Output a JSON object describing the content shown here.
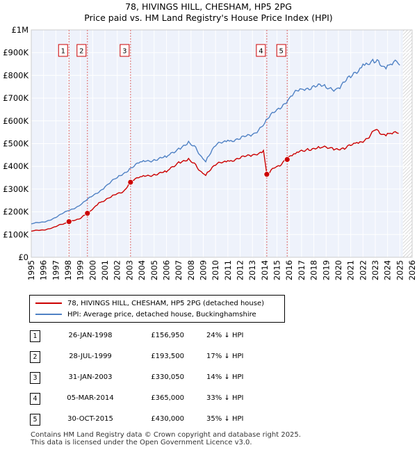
{
  "chart_data": {
    "type": "line",
    "title": "78, HIVINGS HILL, CHESHAM, HP5 2PG",
    "subtitle": "Price paid vs. HM Land Registry's House Price Index (HPI)",
    "xlim": [
      1995,
      2026
    ],
    "ylim": [
      0,
      1000000
    ],
    "x_ticks": [
      "1995",
      "1996",
      "1997",
      "1998",
      "1999",
      "2000",
      "2001",
      "2002",
      "2003",
      "2004",
      "2005",
      "2006",
      "2007",
      "2008",
      "2009",
      "2010",
      "2011",
      "2012",
      "2013",
      "2014",
      "2015",
      "2016",
      "2017",
      "2018",
      "2019",
      "2020",
      "2021",
      "2022",
      "2023",
      "2024",
      "2025",
      "2026"
    ],
    "y_ticks": [
      {
        "value": 0,
        "label": "£0"
      },
      {
        "value": 100000,
        "label": "£100K"
      },
      {
        "value": 200000,
        "label": "£200K"
      },
      {
        "value": 300000,
        "label": "£300K"
      },
      {
        "value": 400000,
        "label": "£400K"
      },
      {
        "value": 500000,
        "label": "£500K"
      },
      {
        "value": 600000,
        "label": "£600K"
      },
      {
        "value": 700000,
        "label": "£700K"
      },
      {
        "value": 800000,
        "label": "£800K"
      },
      {
        "value": 900000,
        "label": "£900K"
      },
      {
        "value": 1000000,
        "label": "£1M"
      }
    ],
    "forecast_from": 2025.25,
    "series": [
      {
        "name": "78, HIVINGS HILL, CHESHAM, HP5 2PG (detached house)",
        "color": "#cc0000",
        "x": [
          1995.0,
          1996.0,
          1997.0,
          1998.07,
          1998.07,
          1999.0,
          1999.57,
          1999.57,
          2000.5,
          2001.5,
          2002.5,
          2003.08,
          2003.08,
          2004.0,
          2005.0,
          2006.0,
          2007.0,
          2007.8,
          2008.5,
          2009.2,
          2010.0,
          2011.0,
          2012.0,
          2013.0,
          2013.9,
          2014.17,
          2014.17,
          2015.0,
          2015.83,
          2015.83,
          2016.5,
          2017.5,
          2018.5,
          2019.5,
          2020.5,
          2021.5,
          2022.5,
          2023.0,
          2023.5,
          2024.0,
          2024.5,
          2024.9
        ],
        "y": [
          115000,
          120000,
          135000,
          156950,
          156950,
          170000,
          193500,
          193500,
          240000,
          265000,
          290000,
          330050,
          330050,
          355000,
          365000,
          375000,
          420000,
          435000,
          395000,
          360000,
          405000,
          425000,
          435000,
          450000,
          470000,
          365000,
          365000,
          400000,
          430000,
          430000,
          455000,
          478000,
          480000,
          482000,
          475000,
          505000,
          525000,
          560000,
          540000,
          545000,
          550000,
          545000
        ]
      },
      {
        "name": "HPI: Average price, detached house, Buckinghamshire",
        "color": "#4f81c4",
        "x": [
          1995.0,
          1996.0,
          1997.0,
          1998.0,
          1999.0,
          2000.0,
          2001.0,
          2002.0,
          2003.0,
          2004.0,
          2005.0,
          2006.0,
          2007.0,
          2007.8,
          2008.5,
          2009.2,
          2010.0,
          2011.0,
          2012.0,
          2013.0,
          2014.0,
          2015.0,
          2016.0,
          2017.0,
          2018.0,
          2019.0,
          2020.0,
          2021.0,
          2022.0,
          2022.8,
          2023.5,
          2024.0,
          2024.5,
          2025.0
        ],
        "y": [
          147000,
          155000,
          175000,
          205000,
          230000,
          270000,
          310000,
          350000,
          390000,
          420000,
          430000,
          440000,
          480000,
          510000,
          470000,
          420000,
          490000,
          515000,
          520000,
          540000,
          590000,
          650000,
          700000,
          740000,
          755000,
          745000,
          745000,
          790000,
          850000,
          870000,
          840000,
          845000,
          860000,
          845000
        ]
      }
    ],
    "sale_markers": [
      {
        "label": "1",
        "x": 1998.07,
        "y": 156950
      },
      {
        "label": "2",
        "x": 1999.57,
        "y": 193500
      },
      {
        "label": "3",
        "x": 2003.08,
        "y": 330050
      },
      {
        "label": "4",
        "x": 2014.17,
        "y": 365000
      },
      {
        "label": "5",
        "x": 2015.83,
        "y": 430000
      }
    ]
  },
  "legend": {
    "property_label": "78, HIVINGS HILL, CHESHAM, HP5 2PG (detached house)",
    "hpi_label": "HPI: Average price, detached house, Buckinghamshire"
  },
  "sales": [
    {
      "num": "1",
      "date": "26-JAN-1998",
      "price": "£156,950",
      "pct": "24% ↓ HPI"
    },
    {
      "num": "2",
      "date": "28-JUL-1999",
      "price": "£193,500",
      "pct": "17% ↓ HPI"
    },
    {
      "num": "3",
      "date": "31-JAN-2003",
      "price": "£330,050",
      "pct": "14% ↓ HPI"
    },
    {
      "num": "4",
      "date": "05-MAR-2014",
      "price": "£365,000",
      "pct": "33% ↓ HPI"
    },
    {
      "num": "5",
      "date": "30-OCT-2015",
      "price": "£430,000",
      "pct": "35% ↓ HPI"
    }
  ],
  "footer": {
    "line1": "Contains HM Land Registry data © Crown copyright and database right 2025.",
    "line2": "This data is licensed under the Open Government Licence v3.0."
  }
}
